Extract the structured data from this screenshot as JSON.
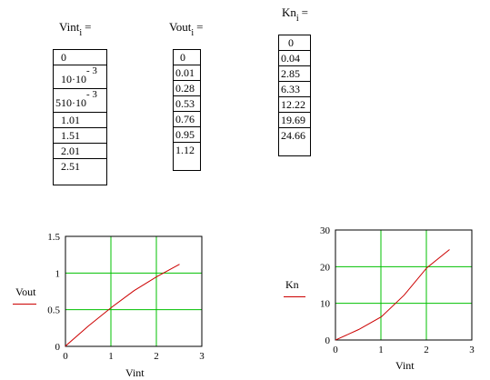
{
  "variables": {
    "vint": {
      "name": "Vint",
      "sub": "i",
      "assign": "=",
      "values": [
        "0",
        {
          "mant": "10·10",
          "exp": "- 3"
        },
        {
          "mant": "510·10",
          "exp": "- 3"
        },
        "1.01",
        "1.51",
        "2.01",
        "2.51"
      ]
    },
    "vout": {
      "name": "Vout",
      "sub": "i",
      "assign": "=",
      "values": [
        "0",
        "0.01",
        "0.28",
        "0.53",
        "0.76",
        "0.95",
        "1.12"
      ]
    },
    "kn": {
      "name": "Kn",
      "sub": "i",
      "assign": "=",
      "values": [
        "0",
        "0.04",
        "2.85",
        "6.33",
        "12.22",
        "19.69",
        "24.66"
      ]
    }
  },
  "charts": {
    "chart_data": [
      {
        "type": "line",
        "xlabel": "Vint",
        "ylabel": "Vout",
        "xlim": [
          0,
          3
        ],
        "ylim": [
          0,
          1.5
        ],
        "xticks": [
          "0",
          "1",
          "2",
          "3"
        ],
        "yticks": [
          "0",
          "0.5",
          "1",
          "1.5"
        ],
        "grid": true,
        "grid_color": "#00c000",
        "series_color": "#cc0000",
        "x": [
          0,
          0.01,
          0.51,
          1.01,
          1.51,
          2.01,
          2.51
        ],
        "y": [
          0,
          0.01,
          0.28,
          0.53,
          0.76,
          0.95,
          1.12
        ]
      },
      {
        "type": "line",
        "xlabel": "Vint",
        "ylabel": "Kn",
        "xlim": [
          0,
          3
        ],
        "ylim": [
          0,
          30
        ],
        "xticks": [
          "0",
          "1",
          "2",
          "3"
        ],
        "yticks": [
          "0",
          "10",
          "20",
          "30"
        ],
        "grid": true,
        "grid_color": "#00c000",
        "series_color": "#cc0000",
        "x": [
          0,
          0.01,
          0.51,
          1.01,
          1.51,
          2.01,
          2.51
        ],
        "y": [
          0,
          0.04,
          2.85,
          6.33,
          12.22,
          19.69,
          24.66
        ]
      }
    ]
  }
}
